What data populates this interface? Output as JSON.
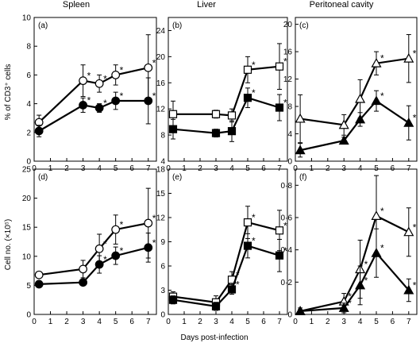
{
  "figure": {
    "column_titles": [
      "Spleen",
      "Liver",
      "Peritoneal cavity"
    ],
    "row_ylabels": [
      "% of CD3⁺ cells",
      "Cell no. (×10⁵)"
    ],
    "xlabel": "Days post-infection",
    "asterisk": "*"
  },
  "chart_data": [
    {
      "panel": "(a)",
      "type": "line",
      "ylim": [
        0,
        10
      ],
      "yticks": [
        0,
        2,
        4,
        6,
        8,
        10
      ],
      "ytick_labels": [
        "0",
        "2",
        "4",
        "6",
        "8",
        "10"
      ],
      "xlim": [
        0,
        7.5
      ],
      "xticks": [
        0,
        1,
        2,
        3,
        4,
        5,
        6,
        7
      ],
      "series": [
        {
          "marker": "circle",
          "fill": "#ffffff",
          "x": [
            0.3,
            3,
            4,
            5,
            7
          ],
          "y": [
            2.7,
            5.6,
            5.4,
            6.0,
            6.5
          ],
          "err": [
            0.5,
            1.1,
            0.6,
            0.7,
            2.3
          ],
          "sig": [
            false,
            true,
            true,
            true,
            true
          ]
        },
        {
          "marker": "circle",
          "fill": "#000000",
          "x": [
            0.3,
            3,
            4,
            5,
            7
          ],
          "y": [
            2.1,
            3.9,
            3.7,
            4.2,
            4.2
          ],
          "err": [
            0.4,
            0.5,
            0.3,
            0.6,
            1.6
          ],
          "sig": [
            false,
            true,
            true,
            true,
            true
          ]
        }
      ]
    },
    {
      "panel": "(b)",
      "type": "line",
      "ylim": [
        4,
        26
      ],
      "yticks": [
        4,
        8,
        12,
        16,
        20,
        24
      ],
      "ytick_labels": [
        "4",
        "8",
        "12",
        "16",
        "20",
        "24"
      ],
      "xlim": [
        0,
        7.5
      ],
      "xticks": [
        0,
        1,
        2,
        3,
        4,
        5,
        6,
        7
      ],
      "series": [
        {
          "marker": "square",
          "fill": "#ffffff",
          "x": [
            0.3,
            3,
            4,
            5,
            7
          ],
          "y": [
            11.2,
            11.2,
            11.0,
            18.0,
            18.5
          ],
          "err": [
            2.0,
            0.6,
            1.0,
            2.0,
            3.5
          ],
          "sig": [
            false,
            false,
            false,
            true,
            true
          ]
        },
        {
          "marker": "square",
          "fill": "#000000",
          "x": [
            0.3,
            3,
            4,
            5,
            7
          ],
          "y": [
            8.9,
            8.3,
            8.6,
            13.7,
            12.2
          ],
          "err": [
            1.5,
            0.6,
            1.6,
            1.5,
            2.0
          ],
          "sig": [
            false,
            false,
            false,
            true,
            true
          ]
        }
      ]
    },
    {
      "panel": "(c)",
      "type": "line",
      "ylim": [
        0,
        21
      ],
      "yticks": [
        0,
        4,
        8,
        12,
        16,
        20
      ],
      "ytick_labels": [
        "0",
        "4",
        "8",
        "12",
        "16",
        "20"
      ],
      "xlim": [
        0,
        7.5
      ],
      "xticks": [
        0,
        1,
        2,
        3,
        4,
        5,
        6,
        7
      ],
      "series": [
        {
          "marker": "triangle",
          "fill": "#ffffff",
          "x": [
            0.3,
            3,
            4,
            5,
            7
          ],
          "y": [
            6.2,
            5.3,
            9.1,
            14.3,
            15.0
          ],
          "err": [
            3.5,
            1.5,
            2.8,
            1.7,
            3.5
          ],
          "sig": [
            false,
            false,
            false,
            true,
            true
          ]
        },
        {
          "marker": "triangle",
          "fill": "#000000",
          "x": [
            0.3,
            3,
            4,
            5,
            7
          ],
          "y": [
            1.6,
            3.0,
            6.1,
            8.8,
            5.6
          ],
          "err": [
            1.0,
            0.5,
            1.0,
            1.5,
            2.5
          ],
          "sig": [
            false,
            false,
            false,
            true,
            true
          ]
        }
      ]
    },
    {
      "panel": "(d)",
      "type": "line",
      "ylim": [
        0,
        25
      ],
      "yticks": [
        0,
        5,
        10,
        15,
        20,
        25
      ],
      "ytick_labels": [
        "0",
        "5",
        "10",
        "15",
        "20",
        "25"
      ],
      "xlim": [
        0,
        7.5
      ],
      "xticks": [
        0,
        1,
        2,
        3,
        4,
        5,
        6,
        7
      ],
      "series": [
        {
          "marker": "circle",
          "fill": "#ffffff",
          "x": [
            0.3,
            3,
            4,
            5,
            7
          ],
          "y": [
            6.8,
            7.8,
            11.3,
            14.6,
            15.7
          ],
          "err": [
            0.5,
            1.5,
            2.5,
            2.5,
            6.0
          ],
          "sig": [
            false,
            false,
            true,
            true,
            true
          ]
        },
        {
          "marker": "circle",
          "fill": "#000000",
          "x": [
            0.3,
            3,
            4,
            5,
            7
          ],
          "y": [
            5.2,
            5.5,
            8.6,
            10.1,
            11.5
          ],
          "err": [
            0.4,
            0.5,
            1.5,
            1.5,
            2.5
          ],
          "sig": [
            false,
            false,
            true,
            true,
            true
          ]
        }
      ]
    },
    {
      "panel": "(e)",
      "type": "line",
      "ylim": [
        0,
        18
      ],
      "yticks": [
        0,
        3,
        6,
        9,
        12,
        15,
        18
      ],
      "ytick_labels": [
        "0",
        "3",
        "6",
        "9",
        "12",
        "15",
        "18"
      ],
      "xlim": [
        0,
        7.5
      ],
      "xticks": [
        0,
        1,
        2,
        3,
        4,
        5,
        6,
        7
      ],
      "series": [
        {
          "marker": "square",
          "fill": "#ffffff",
          "x": [
            0.3,
            3,
            4,
            5,
            7
          ],
          "y": [
            2.2,
            1.5,
            4.3,
            11.4,
            10.4
          ],
          "err": [
            0.6,
            0.8,
            1.0,
            2.0,
            2.5
          ],
          "sig": [
            false,
            false,
            true,
            true,
            true
          ]
        },
        {
          "marker": "square",
          "fill": "#000000",
          "x": [
            0.3,
            3,
            4,
            5,
            7
          ],
          "y": [
            1.8,
            1.0,
            3.1,
            8.5,
            7.3
          ],
          "err": [
            0.5,
            0.5,
            0.6,
            1.5,
            2.0
          ],
          "sig": [
            false,
            false,
            true,
            true,
            true
          ]
        }
      ]
    },
    {
      "panel": "(f)",
      "type": "line",
      "ylim": [
        0,
        0.9
      ],
      "yticks": [
        0,
        0.2,
        0.4,
        0.6,
        0.8
      ],
      "ytick_labels": [
        "0",
        "0·2",
        "0·4",
        "0·6",
        "0·8"
      ],
      "xlim": [
        0,
        7.5
      ],
      "xticks": [
        0,
        1,
        2,
        3,
        4,
        5,
        6,
        7
      ],
      "series": [
        {
          "marker": "triangle",
          "fill": "#ffffff",
          "x": [
            0.3,
            3,
            4,
            5,
            7
          ],
          "y": [
            0.02,
            0.08,
            0.28,
            0.61,
            0.51
          ],
          "err": [
            0.02,
            0.05,
            0.18,
            0.25,
            0.15
          ],
          "sig": [
            false,
            true,
            true,
            true,
            true
          ]
        },
        {
          "marker": "triangle",
          "fill": "#000000",
          "x": [
            0.3,
            3,
            4,
            5,
            7
          ],
          "y": [
            0.02,
            0.04,
            0.18,
            0.38,
            0.15
          ],
          "err": [
            0.01,
            0.03,
            0.12,
            0.15,
            0.07
          ],
          "sig": [
            false,
            true,
            true,
            true,
            true
          ]
        }
      ]
    }
  ]
}
